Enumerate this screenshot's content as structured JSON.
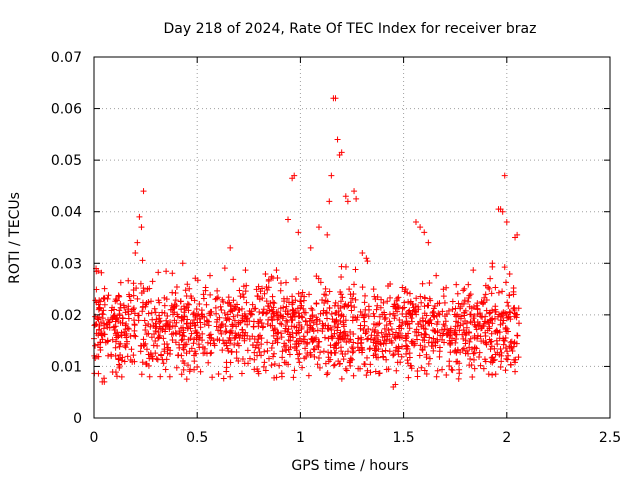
{
  "chart_data": {
    "type": "scatter",
    "title": "Day 218 of 2024, Rate Of TEC Index for receiver braz",
    "xlabel": "GPS time / hours",
    "ylabel": "ROTI / TECUs",
    "xlim": [
      0,
      2.5
    ],
    "ylim": [
      0,
      0.07
    ],
    "xticks": [
      0,
      0.5,
      1,
      1.5,
      2,
      2.5
    ],
    "xtick_labels": [
      "0",
      "0.5",
      "1",
      "1.5",
      "2",
      "2.5"
    ],
    "yticks": [
      0,
      0.01,
      0.02,
      0.03,
      0.04,
      0.05,
      0.06,
      0.07
    ],
    "ytick_labels": [
      "0",
      "0.01",
      "0.02",
      "0.03",
      "0.04",
      "0.05",
      "0.06",
      "0.07"
    ],
    "grid": true,
    "marker": "+",
    "marker_color": "#ff0000",
    "series": [
      {
        "name": "ROTI",
        "outliers": [
          [
            0.01,
            0.029
          ],
          [
            0.02,
            0.0285
          ],
          [
            0.21,
            0.034
          ],
          [
            0.22,
            0.039
          ],
          [
            0.23,
            0.037
          ],
          [
            0.24,
            0.044
          ],
          [
            0.2,
            0.032
          ],
          [
            0.43,
            0.03
          ],
          [
            0.66,
            0.033
          ],
          [
            0.94,
            0.0385
          ],
          [
            0.96,
            0.0465
          ],
          [
            0.97,
            0.047
          ],
          [
            0.99,
            0.036
          ],
          [
            1.05,
            0.033
          ],
          [
            1.09,
            0.037
          ],
          [
            1.13,
            0.0355
          ],
          [
            1.14,
            0.042
          ],
          [
            1.15,
            0.047
          ],
          [
            1.16,
            0.062
          ],
          [
            1.17,
            0.062
          ],
          [
            1.18,
            0.054
          ],
          [
            1.19,
            0.051
          ],
          [
            1.2,
            0.0515
          ],
          [
            1.22,
            0.043
          ],
          [
            1.23,
            0.042
          ],
          [
            1.26,
            0.044
          ],
          [
            1.27,
            0.0425
          ],
          [
            1.3,
            0.032
          ],
          [
            1.56,
            0.038
          ],
          [
            1.58,
            0.037
          ],
          [
            1.6,
            0.036
          ],
          [
            1.62,
            0.034
          ],
          [
            1.93,
            0.03
          ],
          [
            1.96,
            0.0405
          ],
          [
            1.97,
            0.0405
          ],
          [
            1.98,
            0.04
          ],
          [
            1.99,
            0.047
          ],
          [
            2.0,
            0.038
          ],
          [
            2.04,
            0.035
          ],
          [
            2.05,
            0.0355
          ],
          [
            0.04,
            0.007
          ],
          [
            0.05,
            0.007
          ],
          [
            0.27,
            0.008
          ],
          [
            0.66,
            0.008
          ],
          [
            1.45,
            0.006
          ],
          [
            1.46,
            0.0065
          ],
          [
            1.66,
            0.008
          ],
          [
            2.04,
            0.009
          ]
        ],
        "bulk": {
          "x_range": [
            0,
            2.06
          ],
          "count": 1700,
          "center": 0.0175,
          "spread": 0.0045,
          "min": 0.0075,
          "max": 0.031,
          "seed": 218
        }
      }
    ]
  }
}
